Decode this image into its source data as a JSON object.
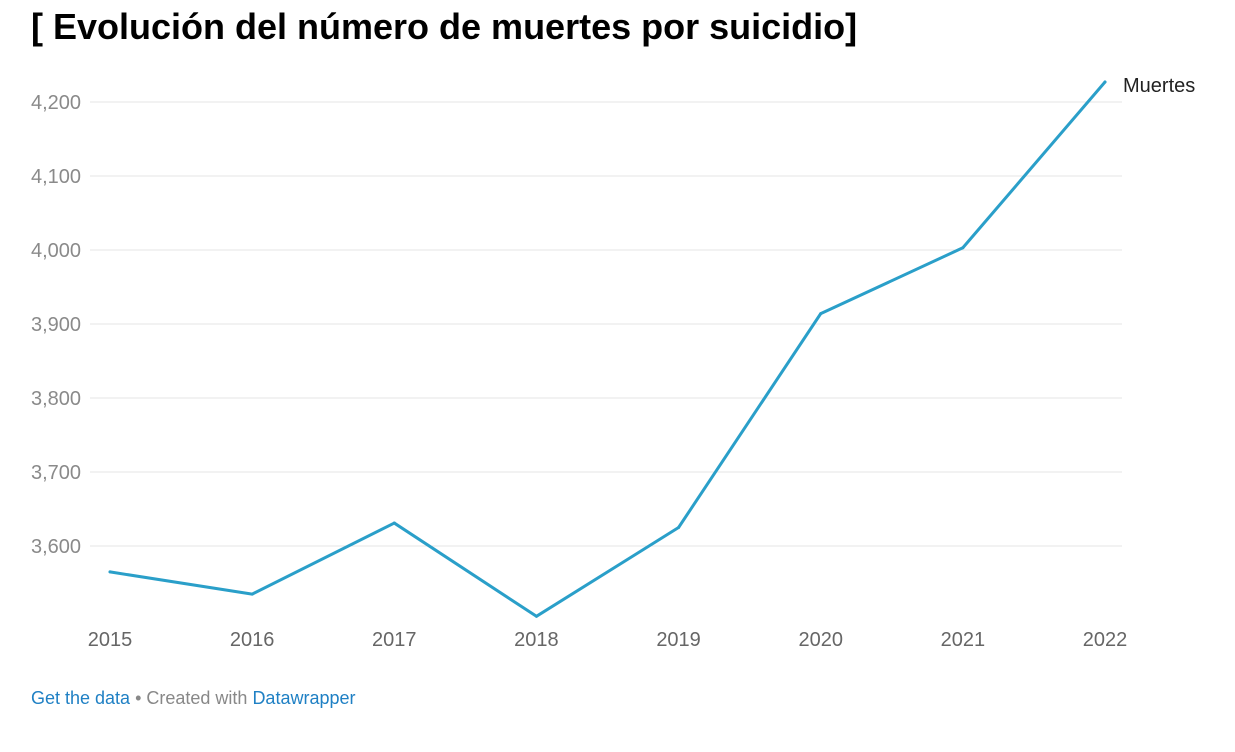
{
  "title": "[ Evolución del número de muertes por suicidio]",
  "footer": {
    "get_data": "Get the data",
    "separator": " • Created with ",
    "brand": "Datawrapper"
  },
  "colors": {
    "line": "#2a9fc9",
    "grid": "#e6e6e6",
    "link": "#1f80c4"
  },
  "chart_data": {
    "type": "line",
    "title": "[ Evolución del número de muertes por suicidio]",
    "xlabel": "",
    "ylabel": "",
    "categories": [
      "2015",
      "2016",
      "2017",
      "2018",
      "2019",
      "2020",
      "2021",
      "2022"
    ],
    "series": [
      {
        "name": "Muertes",
        "values": [
          3565,
          3535,
          3631,
          3505,
          3625,
          3914,
          4003,
          4227
        ]
      }
    ],
    "yticks": [
      3600,
      3700,
      3800,
      3900,
      4000,
      4100,
      4200
    ],
    "ytick_labels": [
      "3,600",
      "3,700",
      "3,800",
      "3,900",
      "4,000",
      "4,100",
      "4,200"
    ],
    "ylim": [
      3500,
      4250
    ],
    "grid": true,
    "legend": "end-of-line label"
  }
}
